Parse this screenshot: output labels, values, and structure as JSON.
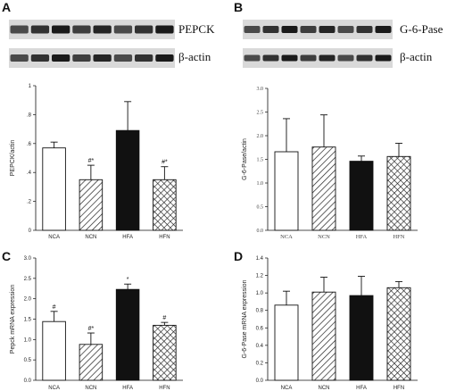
{
  "panels": {
    "A": "A",
    "B": "B",
    "C": "C",
    "D": "D"
  },
  "blots": [
    {
      "id": "A",
      "bands": [
        "PEPCK",
        "β-actin"
      ],
      "lanes": 8
    },
    {
      "id": "B",
      "bands": [
        "G-6-Pase",
        "β-actin"
      ],
      "lanes": 8
    }
  ],
  "colors": {
    "bar_edge": "#111111",
    "solid": "#111111",
    "open": "#ffffff",
    "blot_band": "#1a1a1a"
  },
  "chart_data": [
    {
      "panel": "A",
      "type": "bar",
      "categories": [
        "NCA",
        "NCN",
        "HFA",
        "HFN"
      ],
      "fills": [
        "open",
        "hatch",
        "solid",
        "crosshatch"
      ],
      "values": [
        0.57,
        0.35,
        0.69,
        0.35
      ],
      "errors": [
        0.04,
        0.1,
        0.2,
        0.09
      ],
      "annotations": [
        "",
        "#*",
        "",
        "#*"
      ],
      "ylabel": "PEPCK/actin",
      "ylim": [
        0,
        1.0
      ],
      "yticks": [
        0,
        0.2,
        0.4,
        0.6,
        0.8,
        1.0
      ],
      "ytick_labels": [
        "0",
        ".2",
        ".4",
        ".6",
        ".8",
        "1"
      ],
      "grid": false
    },
    {
      "panel": "B",
      "type": "bar",
      "categories": [
        "NCA",
        "NCN",
        "HFA",
        "HFN"
      ],
      "fills": [
        "open",
        "hatch",
        "solid",
        "crosshatch"
      ],
      "values": [
        1.66,
        1.76,
        1.46,
        1.56
      ],
      "errors": [
        0.7,
        0.68,
        0.11,
        0.28
      ],
      "annotations": [
        "",
        "",
        "",
        ""
      ],
      "ylabel": "G-6-Pase/actin",
      "ylim": [
        0,
        3.0
      ],
      "yticks": [
        0,
        0.5,
        1.0,
        1.5,
        2.0,
        2.5,
        3.0
      ],
      "ytick_labels": [
        "0.0",
        "0.5",
        "1.0",
        "1.5",
        "2.0",
        "2.5",
        "3.0"
      ],
      "grid": false
    },
    {
      "panel": "C",
      "type": "bar",
      "categories": [
        "NCA",
        "NCN",
        "HFA",
        "HFN"
      ],
      "fills": [
        "open",
        "hatch",
        "solid",
        "crosshatch"
      ],
      "values": [
        1.44,
        0.88,
        2.23,
        1.35
      ],
      "errors": [
        0.25,
        0.28,
        0.13,
        0.07
      ],
      "annotations": [
        "#",
        "#*",
        "*",
        "#"
      ],
      "ylabel": "Pepck mRNA expression",
      "ylim": [
        0,
        3.0
      ],
      "yticks": [
        0,
        0.5,
        1.0,
        1.5,
        2.0,
        2.5,
        3.0
      ],
      "ytick_labels": [
        "0.0",
        "0.5",
        "1.0",
        "1.5",
        "2.0",
        "2.5",
        "3.0"
      ],
      "grid": false
    },
    {
      "panel": "D",
      "type": "bar",
      "categories": [
        "NCA",
        "NCN",
        "HFA",
        "HFN"
      ],
      "fills": [
        "open",
        "hatch",
        "solid",
        "crosshatch"
      ],
      "values": [
        0.86,
        1.01,
        0.97,
        1.06
      ],
      "errors": [
        0.16,
        0.17,
        0.22,
        0.07
      ],
      "annotations": [
        "",
        "",
        "",
        ""
      ],
      "ylabel": "G-6-Pase mRNA expression",
      "ylim": [
        0,
        1.4
      ],
      "yticks": [
        0,
        0.2,
        0.4,
        0.6,
        0.8,
        1.0,
        1.2,
        1.4
      ],
      "ytick_labels": [
        "0.0",
        "0.2",
        "0.4",
        "0.6",
        "0.8",
        "1.0",
        "1.2",
        "1.4"
      ],
      "grid": false
    }
  ]
}
